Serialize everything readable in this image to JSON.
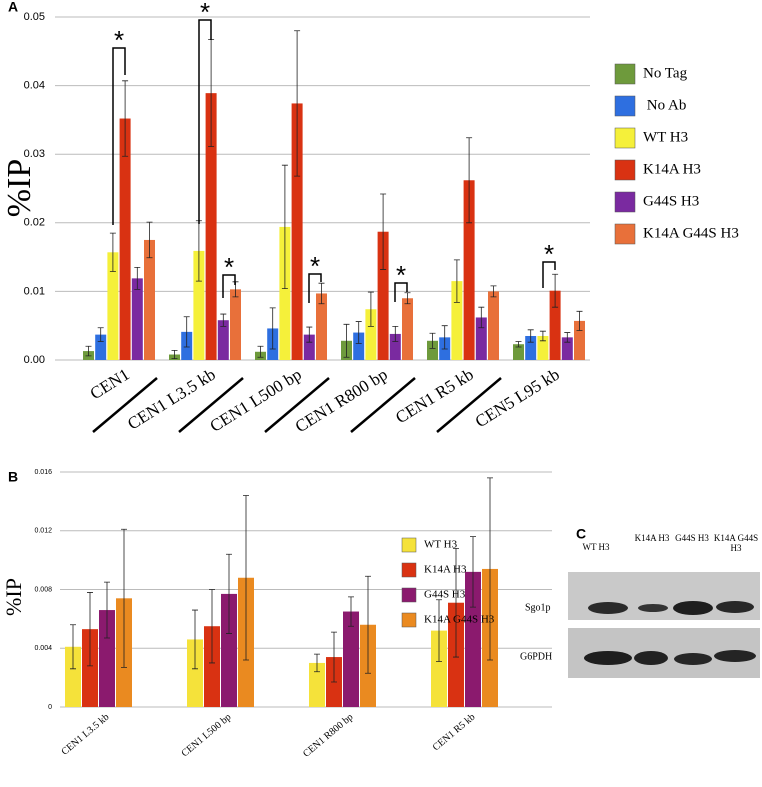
{
  "chart_data": [
    {
      "type": "bar",
      "label": "A",
      "y_label": "%IP",
      "categories": [
        "CEN1",
        "CEN1 L3.5 kb",
        "CEN1 L500 bp",
        "CEN1 R800 bp",
        "CEN1 R5 kb",
        "CEN5 L95 kb"
      ],
      "series": [
        {
          "name": "No Tag",
          "color": "#6e9a3c",
          "values": [
            0.0013,
            0.0008,
            0.0012,
            0.0028,
            0.0028,
            0.0023
          ],
          "errors": [
            0.0007,
            0.0006,
            0.0008,
            0.0024,
            0.0011,
            0.0004
          ]
        },
        {
          "name": " No Ab",
          "color": "#2e6fe0",
          "values": [
            0.0037,
            0.0041,
            0.0046,
            0.004,
            0.0033,
            0.0035
          ],
          "errors": [
            0.001,
            0.0022,
            0.003,
            0.0016,
            0.0017,
            0.0009
          ]
        },
        {
          "name": "WT H3",
          "color": "#f5f03a",
          "values": [
            0.0157,
            0.0159,
            0.0194,
            0.0074,
            0.0115,
            0.0035
          ],
          "errors": [
            0.0028,
            0.0044,
            0.009,
            0.0025,
            0.0031,
            0.0007
          ]
        },
        {
          "name": "K14A H3",
          "color": "#d93212",
          "values": [
            0.0352,
            0.0389,
            0.0374,
            0.0187,
            0.0262,
            0.0101
          ],
          "errors": [
            0.0055,
            0.0078,
            0.0106,
            0.0055,
            0.0062,
            0.0024
          ]
        },
        {
          "name": "G44S H3",
          "color": "#7a2aa0",
          "values": [
            0.0119,
            0.0058,
            0.0037,
            0.0038,
            0.0062,
            0.0033
          ],
          "errors": [
            0.0016,
            0.0009,
            0.0011,
            0.0011,
            0.0015,
            0.0007
          ]
        },
        {
          "name": "K14A G44S H3",
          "color": "#e8703a",
          "values": [
            0.0175,
            0.0103,
            0.0097,
            0.009,
            0.01,
            0.0057
          ],
          "errors": [
            0.0026,
            0.0011,
            0.0015,
            0.0008,
            0.0008,
            0.0014
          ]
        }
      ],
      "ylim": [
        0,
        0.05
      ],
      "yticks": [
        {
          "value": 0,
          "label": "0.00"
        },
        0.01,
        0.02,
        0.03,
        0.04,
        0.05
      ],
      "grid": true,
      "annotations": [
        "*",
        "*",
        "*",
        "*",
        "*",
        "*"
      ]
    },
    {
      "type": "bar",
      "label": "B",
      "y_label": "%IP",
      "categories": [
        "CEN1 L3.5 kb",
        "CEN1 L500 bp",
        "CEN1 R800 bp",
        "CEN1 R5 kb"
      ],
      "series": [
        {
          "name": "WT H3",
          "color": "#f5e23a",
          "values": [
            0.0041,
            0.0046,
            0.003,
            0.0052
          ],
          "errors": [
            0.0015,
            0.002,
            0.0006,
            0.0021
          ]
        },
        {
          "name": "K14A H3",
          "color": "#d93212",
          "values": [
            0.0053,
            0.0055,
            0.0034,
            0.0071
          ],
          "errors": [
            0.0025,
            0.0025,
            0.0017,
            0.0037
          ]
        },
        {
          "name": "G44S H3",
          "color": "#8b1a6e",
          "values": [
            0.0066,
            0.0077,
            0.0065,
            0.0092
          ],
          "errors": [
            0.0019,
            0.0027,
            0.001,
            0.0024
          ]
        },
        {
          "name": "K14A G44S H3",
          "color": "#ea8a20",
          "values": [
            0.0074,
            0.0088,
            0.0056,
            0.0094
          ],
          "errors": [
            0.0047,
            0.0056,
            0.0033,
            0.0062
          ]
        }
      ],
      "ylim": [
        0,
        0.016
      ],
      "yticks": [
        0,
        0.004,
        0.008,
        0.012,
        0.016
      ],
      "grid": true
    }
  ],
  "blot": {
    "label": "C",
    "lanes": [
      "WT H3",
      "K14A H3",
      "G44S H3",
      "K14A G44S H3"
    ],
    "rows": [
      "Sgo1p",
      "G6PDH"
    ]
  }
}
